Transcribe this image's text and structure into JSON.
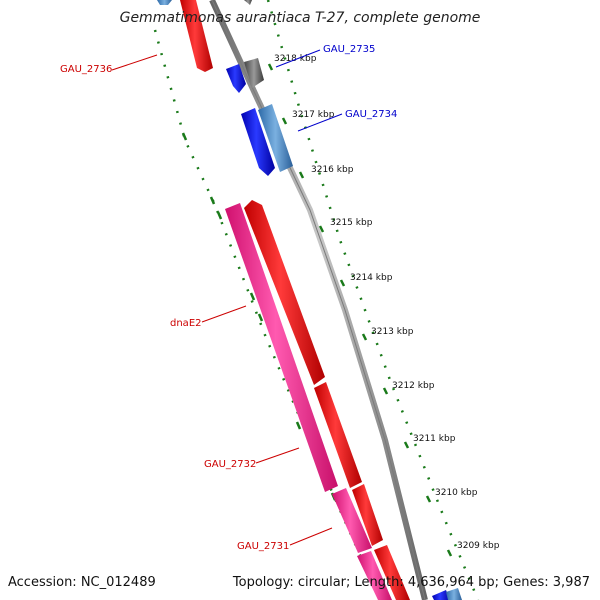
{
  "title": "Gemmatimonas aurantiaca T-27, complete genome",
  "footer": {
    "accession": "Accession: NC_012489",
    "topology": "Topology: circular; Length: 4,636,964 bp; Genes: 3,987"
  },
  "ticks": [
    "3218 kbp",
    "3217 kbp",
    "3216 kbp",
    "3215 kbp",
    "3214 kbp",
    "3213 kbp",
    "3212 kbp",
    "3211 kbp",
    "3210 kbp",
    "3209 kbp"
  ],
  "gene_labels": [
    {
      "text": "GAU_2735",
      "color": "#0000cc"
    },
    {
      "text": "GAU_2734",
      "color": "#0000cc"
    },
    {
      "text": "GAU_2736",
      "color": "#cc0000"
    },
    {
      "text": "dnaE2",
      "color": "#cc0000"
    },
    {
      "text": "GAU_2732",
      "color": "#cc0000"
    },
    {
      "text": "GAU_2731",
      "color": "#cc0000"
    }
  ],
  "colors": {
    "forward_gene": "#ff0000",
    "reverse_gene": "#0000ee",
    "rna_gene": "#ff2a9a",
    "light_blue_gene": "#4a8ccc",
    "grey_gene": "#666666",
    "backbone": "#8a8a8a",
    "tick_track": "#1a7a1a"
  }
}
